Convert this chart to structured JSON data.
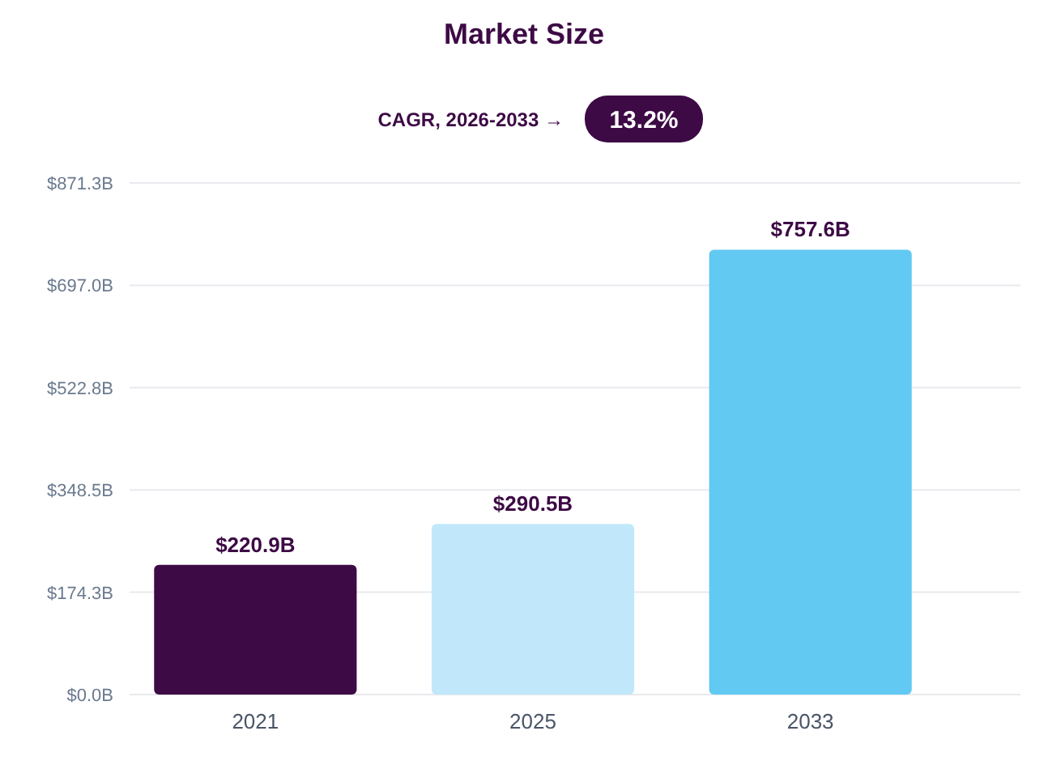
{
  "chart_data": {
    "type": "bar",
    "title": "Market Size",
    "subtitle": "CAGR, 2026-2033 →",
    "annotations": [
      "13.2%"
    ],
    "categories": [
      "2021",
      "2025",
      "2033"
    ],
    "values": [
      220.9,
      290.5,
      757.6
    ],
    "colors": [
      "#3d0a45",
      "#c0e8fa",
      "#62c9f2"
    ],
    "value_labels": [
      "$220.9B",
      "$290.5B",
      "$757.6B"
    ],
    "ylim": [
      0,
      871.3
    ],
    "yticks": [
      {
        "value": 0,
        "label": "$0.0B"
      },
      {
        "value": 174.3,
        "label": "$174.3B"
      },
      {
        "value": 348.5,
        "label": "$348.5B"
      },
      {
        "value": 522.8,
        "label": "$522.8B"
      },
      {
        "value": 697.0,
        "label": "$697.0B"
      },
      {
        "value": 871.3,
        "label": "$871.3B"
      }
    ],
    "grid": "y"
  }
}
